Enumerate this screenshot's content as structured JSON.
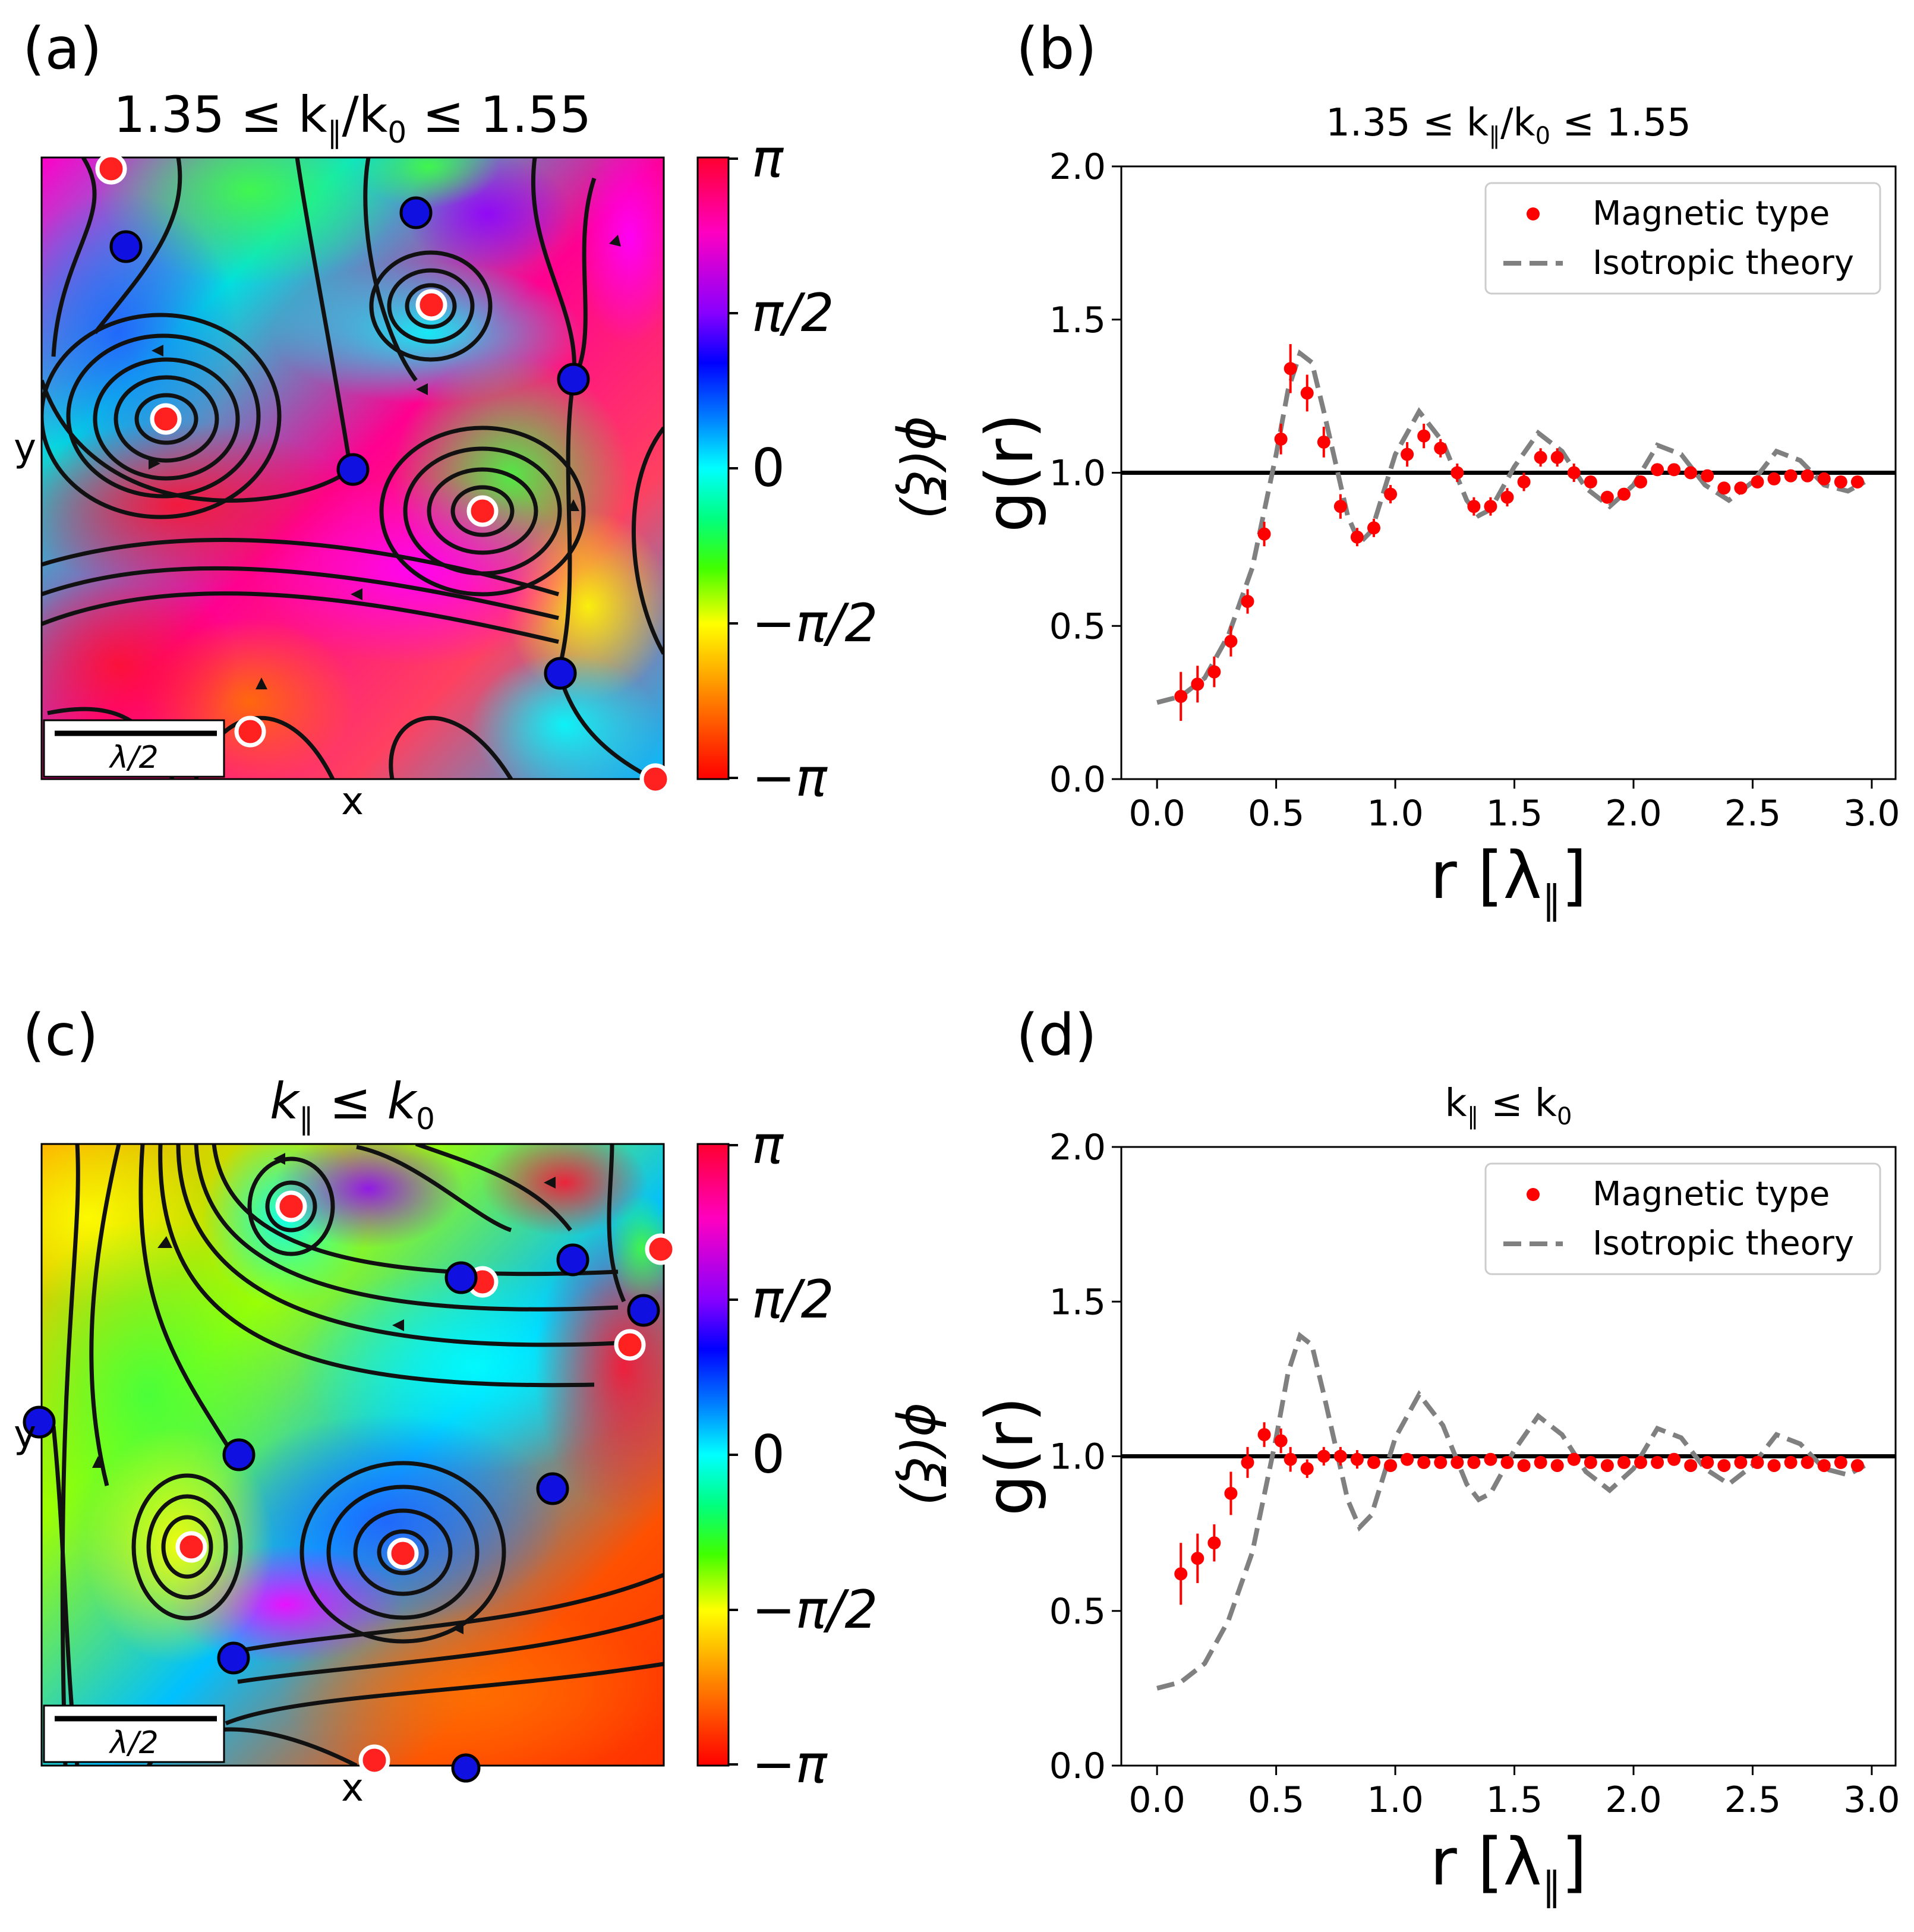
{
  "figure": {
    "panel_labels": [
      "(a)",
      "(b)",
      "(c)",
      "(d)"
    ]
  },
  "chart_data": [
    {
      "panel": "(a)",
      "type": "heatmap",
      "title": "1.35 ≤ k∥/k0 ≤ 1.55",
      "title_parts": {
        "a": "1.35 ≤ k",
        "sub": "∥",
        "b": "/k",
        "sub2": "0",
        "c": " ≤ 1.55"
      },
      "xlabel": "x",
      "ylabel": "y",
      "scale_bar": "λ/2",
      "colorbar": {
        "label": "ϕ(ξ)",
        "ticks": [
          "π",
          "π/2",
          "0",
          "−π/2",
          "−π"
        ],
        "tick_values": [
          3.1416,
          1.5708,
          0,
          -1.5708,
          -3.1416
        ]
      },
      "phase_singularities": {
        "positive_red": [
          [
            0.11,
            0.98
          ],
          [
            0.63,
            0.77
          ],
          [
            0.2,
            0.58
          ],
          [
            0.71,
            0.43
          ],
          [
            0.34,
            0.07
          ],
          [
            0.98,
            0.0
          ]
        ],
        "negative_blue": [
          [
            0.13,
            0.86
          ],
          [
            0.6,
            0.91
          ],
          [
            0.86,
            0.64
          ],
          [
            0.5,
            0.5
          ],
          [
            0.84,
            0.17
          ]
        ]
      }
    },
    {
      "panel": "(b)",
      "type": "scatter",
      "title": "1.35 ≤ k∥/k0 ≤ 1.55",
      "title_parts": {
        "a": "1.35 ≤ k",
        "sub": "∥",
        "b": "/k",
        "sub2": "0",
        "c": " ≤ 1.55"
      },
      "xlabel": "r [λ∥]",
      "xlabel_parts": {
        "a": "r [λ",
        "sub": "∥",
        "b": "]"
      },
      "ylabel": "g(r)",
      "xlim": [
        -0.15,
        3.1
      ],
      "ylim": [
        0.0,
        2.0
      ],
      "xticks": [
        0.0,
        0.5,
        1.0,
        1.5,
        2.0,
        2.5,
        3.0
      ],
      "xtick_labels": [
        "0.0",
        "0.5",
        "1.0",
        "1.5",
        "2.0",
        "2.5",
        "3.0"
      ],
      "yticks": [
        0.0,
        0.5,
        1.0,
        1.5,
        2.0
      ],
      "ytick_labels": [
        "0.0",
        "0.5",
        "1.0",
        "1.5",
        "2.0"
      ],
      "reference_line": 1.0,
      "legend": [
        "Magnetic type",
        "Isotropic theory"
      ],
      "legend_position": "top-right",
      "series": [
        {
          "name": "Magnetic type",
          "x": [
            0.1,
            0.17,
            0.24,
            0.31,
            0.38,
            0.45,
            0.52,
            0.56,
            0.63,
            0.7,
            0.77,
            0.84,
            0.91,
            0.98,
            1.05,
            1.12,
            1.19,
            1.26,
            1.33,
            1.4,
            1.47,
            1.54,
            1.61,
            1.68,
            1.75,
            1.82,
            1.89,
            1.96,
            2.03,
            2.1,
            2.17,
            2.24,
            2.31,
            2.38,
            2.45,
            2.52,
            2.59,
            2.66,
            2.73,
            2.8,
            2.87,
            2.94
          ],
          "y": [
            0.27,
            0.31,
            0.35,
            0.45,
            0.58,
            0.8,
            1.11,
            1.34,
            1.26,
            1.1,
            0.89,
            0.79,
            0.82,
            0.93,
            1.06,
            1.12,
            1.08,
            1.0,
            0.89,
            0.89,
            0.92,
            0.97,
            1.05,
            1.05,
            1.0,
            0.97,
            0.92,
            0.93,
            0.97,
            1.01,
            1.01,
            1.0,
            0.99,
            0.95,
            0.95,
            0.97,
            0.98,
            0.99,
            0.99,
            0.98,
            0.97,
            0.97
          ],
          "err": [
            0.08,
            0.06,
            0.05,
            0.05,
            0.04,
            0.04,
            0.05,
            0.08,
            0.06,
            0.05,
            0.04,
            0.03,
            0.03,
            0.03,
            0.04,
            0.04,
            0.03,
            0.03,
            0.03,
            0.03,
            0.03,
            0.03,
            0.03,
            0.03,
            0.03,
            0.02,
            0.02,
            0.02,
            0.02,
            0.02,
            0.02,
            0.02,
            0.02,
            0.02,
            0.02,
            0.02,
            0.02,
            0.02,
            0.02,
            0.02,
            0.02,
            0.02
          ]
        },
        {
          "name": "Isotropic theory",
          "x": [
            0.0,
            0.1,
            0.2,
            0.3,
            0.4,
            0.5,
            0.55,
            0.6,
            0.65,
            0.7,
            0.8,
            0.85,
            0.9,
            1.0,
            1.1,
            1.2,
            1.3,
            1.35,
            1.4,
            1.5,
            1.6,
            1.7,
            1.8,
            1.9,
            2.0,
            2.1,
            2.2,
            2.3,
            2.4,
            2.5,
            2.6,
            2.7,
            2.8,
            2.9,
            2.97
          ],
          "y": [
            0.25,
            0.27,
            0.33,
            0.47,
            0.69,
            1.06,
            1.27,
            1.39,
            1.36,
            1.2,
            0.86,
            0.77,
            0.81,
            1.06,
            1.2,
            1.1,
            0.91,
            0.86,
            0.88,
            1.02,
            1.13,
            1.07,
            0.95,
            0.89,
            0.96,
            1.09,
            1.06,
            0.96,
            0.91,
            0.97,
            1.07,
            1.04,
            0.96,
            0.94,
            0.97
          ]
        }
      ]
    },
    {
      "panel": "(c)",
      "type": "heatmap",
      "title": "k∥ ≤ k0",
      "title_parts": {
        "a": "k",
        "sub": "∥",
        "b": " ≤ k",
        "sub2": "0"
      },
      "xlabel": "x",
      "ylabel": "y",
      "scale_bar": "λ/2",
      "colorbar": {
        "label": "ϕ(ξ)",
        "ticks": [
          "π",
          "π/2",
          "0",
          "−π/2",
          "−π"
        ],
        "tick_values": [
          3.1416,
          1.5708,
          0,
          -1.5708,
          -3.1416
        ]
      },
      "phase_singularities": {
        "positive_red": [
          [
            0.4,
            0.9
          ],
          [
            0.71,
            0.78
          ],
          [
            0.95,
            0.68
          ],
          [
            1.0,
            0.83
          ],
          [
            0.24,
            0.35
          ],
          [
            0.58,
            0.34
          ],
          [
            0.54,
            0.01
          ]
        ],
        "negative_blue": [
          [
            0.68,
            0.79
          ],
          [
            0.85,
            0.82
          ],
          [
            0.97,
            0.73
          ],
          [
            0.0,
            0.55
          ],
          [
            0.32,
            0.49
          ],
          [
            0.82,
            0.45
          ],
          [
            0.31,
            0.17
          ],
          [
            0.68,
            0.0
          ]
        ]
      }
    },
    {
      "panel": "(d)",
      "type": "scatter",
      "title": "k∥ ≤ k0",
      "title_parts": {
        "a": "k",
        "sub": "∥",
        "b": " ≤ k",
        "sub2": "0"
      },
      "xlabel": "r [λ∥]",
      "xlabel_parts": {
        "a": "r [λ",
        "sub": "∥",
        "b": "]"
      },
      "ylabel": "g(r)",
      "xlim": [
        -0.15,
        3.1
      ],
      "ylim": [
        0.0,
        2.0
      ],
      "xticks": [
        0.0,
        0.5,
        1.0,
        1.5,
        2.0,
        2.5,
        3.0
      ],
      "xtick_labels": [
        "0.0",
        "0.5",
        "1.0",
        "1.5",
        "2.0",
        "2.5",
        "3.0"
      ],
      "yticks": [
        0.0,
        0.5,
        1.0,
        1.5,
        2.0
      ],
      "ytick_labels": [
        "0.0",
        "0.5",
        "1.0",
        "1.5",
        "2.0"
      ],
      "reference_line": 1.0,
      "legend": [
        "Magnetic type",
        "Isotropic theory"
      ],
      "legend_position": "top-right",
      "series": [
        {
          "name": "Magnetic type",
          "x": [
            0.1,
            0.17,
            0.24,
            0.31,
            0.38,
            0.45,
            0.52,
            0.56,
            0.63,
            0.7,
            0.77,
            0.84,
            0.91,
            0.98,
            1.05,
            1.12,
            1.19,
            1.26,
            1.33,
            1.4,
            1.47,
            1.54,
            1.61,
            1.68,
            1.75,
            1.82,
            1.89,
            1.96,
            2.03,
            2.1,
            2.17,
            2.24,
            2.31,
            2.38,
            2.45,
            2.52,
            2.59,
            2.66,
            2.73,
            2.8,
            2.87,
            2.94
          ],
          "y": [
            0.62,
            0.67,
            0.72,
            0.88,
            0.98,
            1.07,
            1.05,
            0.99,
            0.96,
            1.0,
            1.0,
            0.99,
            0.98,
            0.97,
            0.99,
            0.98,
            0.98,
            0.98,
            0.98,
            0.99,
            0.98,
            0.97,
            0.98,
            0.97,
            0.99,
            0.98,
            0.97,
            0.98,
            0.98,
            0.98,
            0.99,
            0.97,
            0.98,
            0.97,
            0.98,
            0.98,
            0.97,
            0.98,
            0.98,
            0.97,
            0.98,
            0.97
          ],
          "err": [
            0.1,
            0.08,
            0.06,
            0.07,
            0.05,
            0.04,
            0.04,
            0.04,
            0.03,
            0.03,
            0.03,
            0.03,
            0.02,
            0.02,
            0.02,
            0.02,
            0.02,
            0.02,
            0.02,
            0.02,
            0.02,
            0.02,
            0.02,
            0.02,
            0.02,
            0.02,
            0.02,
            0.02,
            0.02,
            0.02,
            0.02,
            0.02,
            0.02,
            0.02,
            0.02,
            0.02,
            0.02,
            0.02,
            0.02,
            0.02,
            0.02,
            0.02
          ]
        },
        {
          "name": "Isotropic theory",
          "x": [
            0.0,
            0.1,
            0.2,
            0.3,
            0.4,
            0.5,
            0.55,
            0.6,
            0.65,
            0.7,
            0.8,
            0.85,
            0.9,
            1.0,
            1.1,
            1.2,
            1.3,
            1.35,
            1.4,
            1.5,
            1.6,
            1.7,
            1.8,
            1.9,
            2.0,
            2.1,
            2.2,
            2.3,
            2.4,
            2.5,
            2.6,
            2.7,
            2.8,
            2.9,
            2.97
          ],
          "y": [
            0.25,
            0.27,
            0.33,
            0.47,
            0.69,
            1.06,
            1.27,
            1.39,
            1.36,
            1.2,
            0.86,
            0.77,
            0.81,
            1.06,
            1.2,
            1.1,
            0.91,
            0.86,
            0.88,
            1.02,
            1.13,
            1.07,
            0.95,
            0.89,
            0.96,
            1.09,
            1.06,
            0.96,
            0.91,
            0.97,
            1.07,
            1.04,
            0.96,
            0.94,
            0.97
          ]
        }
      ]
    }
  ],
  "colors": {
    "magnetic_marker": "#ff0000",
    "theory_line": "#808080",
    "reference_line": "#000000",
    "positive_vortex": "#ff2020",
    "negative_vortex": "#1010e0",
    "vortex_outline_pos": "#ffffff",
    "vortex_outline_neg": "#000000",
    "streamline": "#111111"
  }
}
